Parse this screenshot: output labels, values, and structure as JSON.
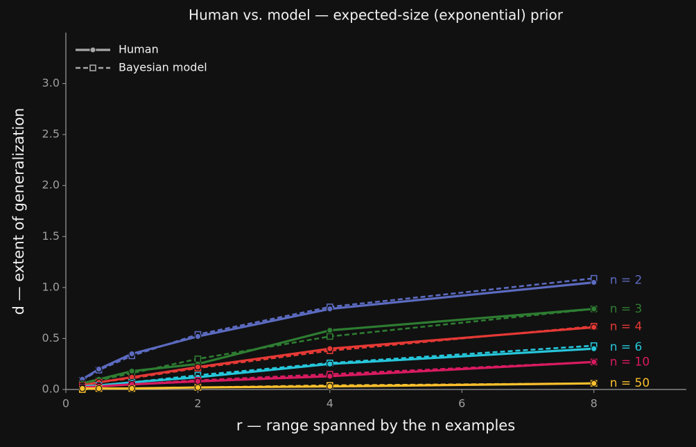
{
  "chart_data": {
    "type": "line",
    "title": "Human vs. model — expected-size (exponential) prior",
    "x_label": "r — range spanned by the n examples",
    "y_label": "d — extent of generalization",
    "x": [
      0.25,
      0.5,
      1,
      2,
      4,
      8
    ],
    "xlim": [
      0,
      9.4
    ],
    "ylim": [
      0,
      3.5
    ],
    "xticks": [
      0,
      2,
      4,
      6,
      8
    ],
    "yticks": [
      {
        "value": 0,
        "label": "0.0"
      },
      {
        "value": 0.5,
        "label": "0.5"
      },
      {
        "value": 1,
        "label": "1.0"
      },
      {
        "value": 1.5,
        "label": "1.5"
      },
      {
        "value": 2,
        "label": "2.0"
      },
      {
        "value": 2.5,
        "label": "2.5"
      },
      {
        "value": 3,
        "label": "3.0"
      }
    ],
    "legend_position": "upper left",
    "legend": [
      {
        "label": "Human",
        "color": "#a8a8a8"
      },
      {
        "label": "Bayesian model",
        "color": "#a8a8a8"
      }
    ],
    "series": [
      {
        "name": "n = 2",
        "color": "#5c6bc0",
        "human": [
          0.1,
          0.2,
          0.35,
          0.52,
          0.79,
          1.05
        ],
        "model": [
          0.09,
          0.19,
          0.33,
          0.54,
          0.81,
          1.09
        ]
      },
      {
        "name": "n = 3",
        "color": "#2e7d32",
        "human": [
          0.06,
          0.1,
          0.18,
          0.25,
          0.58,
          0.79
        ],
        "model": [
          0.05,
          0.09,
          0.16,
          0.3,
          0.52,
          0.79
        ]
      },
      {
        "name": "n = 4",
        "color": "#e53935",
        "human": [
          0.04,
          0.07,
          0.12,
          0.22,
          0.4,
          0.61
        ],
        "model": [
          0.04,
          0.07,
          0.11,
          0.21,
          0.38,
          0.62
        ]
      },
      {
        "name": "n = 6",
        "color": "#26c6da",
        "human": [
          0.03,
          0.04,
          0.07,
          0.12,
          0.25,
          0.4
        ],
        "model": [
          0.02,
          0.04,
          0.07,
          0.14,
          0.26,
          0.43
        ]
      },
      {
        "name": "n = 10",
        "color": "#d81b60",
        "human": [
          0.02,
          0.03,
          0.05,
          0.08,
          0.13,
          0.27
        ],
        "model": [
          0.02,
          0.03,
          0.05,
          0.09,
          0.15,
          0.27
        ]
      },
      {
        "name": "n = 50",
        "color": "#fbc02d",
        "human": [
          0.01,
          0.01,
          0.01,
          0.02,
          0.03,
          0.06
        ],
        "model": [
          0.0,
          0.01,
          0.01,
          0.02,
          0.04,
          0.06
        ]
      }
    ]
  }
}
